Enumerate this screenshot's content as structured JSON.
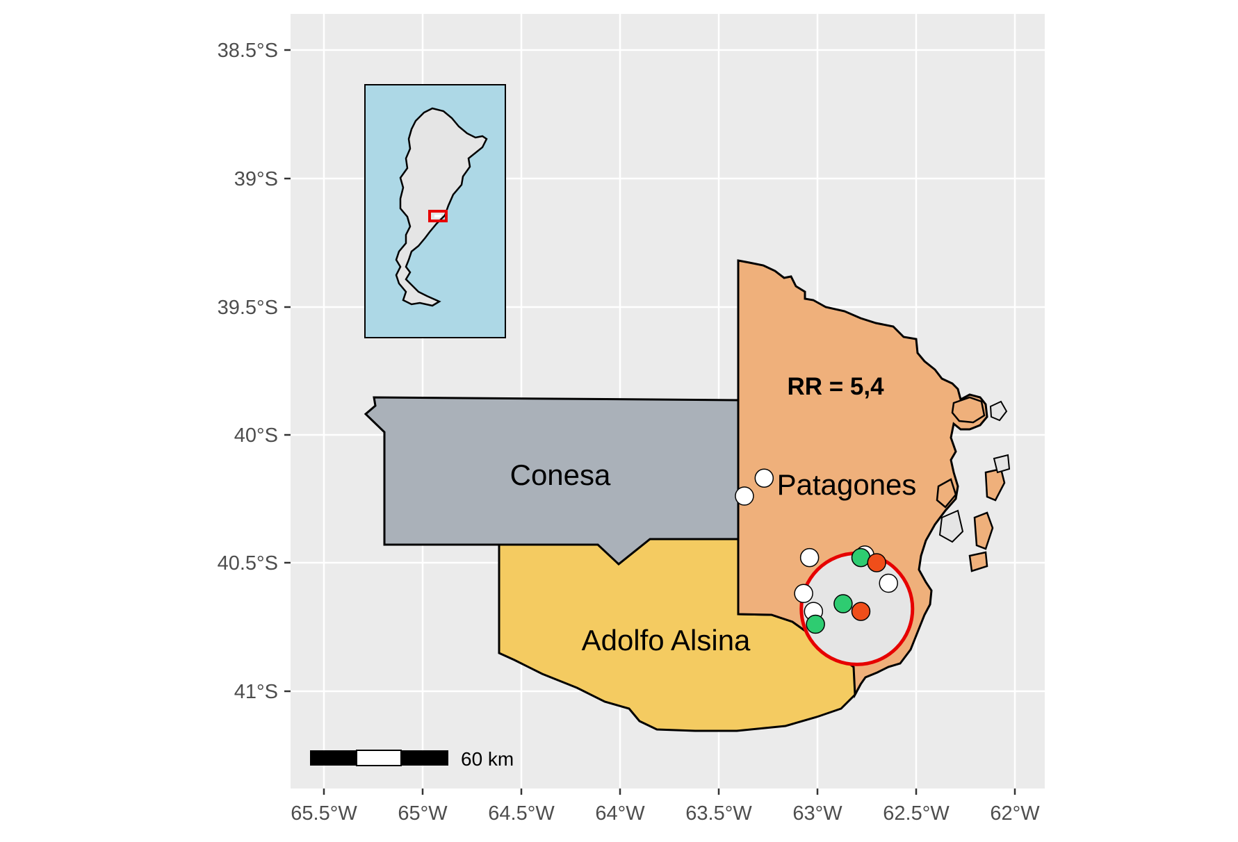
{
  "map": {
    "x_ticks": [
      "65.5°W",
      "65°W",
      "64.5°W",
      "64°W",
      "63.5°W",
      "63°W",
      "62.5°W",
      "62°W"
    ],
    "y_ticks": [
      "38.5°S",
      "39°S",
      "39.5°S",
      "40°S",
      "40.5°S",
      "41°S"
    ],
    "regions": [
      {
        "name": "Conesa",
        "color": "#aab1b9"
      },
      {
        "name": "Adolfo Alsina",
        "color": "#f4cb61"
      },
      {
        "name": "Patagones",
        "color": "#efb07b"
      }
    ],
    "annotation": "RR = 5,4",
    "scale_bar": {
      "label": "60 km"
    },
    "cluster": {
      "center_lon": -62.8,
      "center_lat": -40.68,
      "color": "#e60000"
    },
    "points": [
      {
        "lon": -63.27,
        "lat": -40.17,
        "color": "#ffffff"
      },
      {
        "lon": -63.37,
        "lat": -40.24,
        "color": "#ffffff"
      },
      {
        "lon": -63.04,
        "lat": -40.48,
        "color": "#ffffff"
      },
      {
        "lon": -62.76,
        "lat": -40.47,
        "color": "#ffffff"
      },
      {
        "lon": -62.64,
        "lat": -40.58,
        "color": "#ffffff"
      },
      {
        "lon": -63.07,
        "lat": -40.62,
        "color": "#ffffff"
      },
      {
        "lon": -63.02,
        "lat": -40.69,
        "color": "#ffffff"
      },
      {
        "lon": -62.78,
        "lat": -40.48,
        "color": "#2ecc71"
      },
      {
        "lon": -62.87,
        "lat": -40.66,
        "color": "#2ecc71"
      },
      {
        "lon": -63.01,
        "lat": -40.74,
        "color": "#2ecc71"
      },
      {
        "lon": -62.7,
        "lat": -40.5,
        "color": "#f04e1a"
      },
      {
        "lon": -62.78,
        "lat": -40.69,
        "color": "#f04e1a"
      }
    ],
    "inset": {
      "ocean_color": "#add8e6",
      "land_color": "#e5e5e5",
      "highlight_color": "#e60000"
    }
  }
}
